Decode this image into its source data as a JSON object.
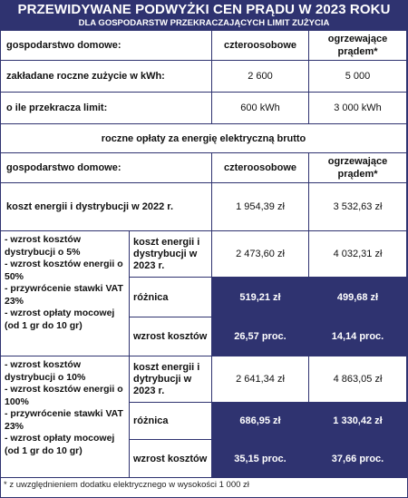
{
  "header": {
    "title": "PRZEWIDYWANE PODWYŻKI CEN PRĄDU W 2023 ROKU",
    "subtitle": "DLA GOSPODARSTW PRZEKRACZAJĄCYCH LIMIT ZUŻYCIA"
  },
  "table1": {
    "col_label": "gospodarstwo domowe:",
    "col_a": "czteroosobowe",
    "col_b": "ogrzewające prądem*",
    "rows": [
      {
        "label": "zakładane roczne zużycie w kWh:",
        "a": "2 600",
        "b": "5 000"
      },
      {
        "label": "o ile przekracza limit:",
        "a": "600 kWh",
        "b": "3 000 kWh"
      }
    ]
  },
  "section_title": "roczne opłaty za energię elektryczną brutto",
  "table2": {
    "col_label": "gospodarstwo domowe:",
    "col_a": "czteroosobowe",
    "col_b": "ogrzewające prądem*",
    "base": {
      "label": "koszt energii i dystrybucji w 2022 r.",
      "a": "1 954,39 zł",
      "b": "3 532,63 zł"
    },
    "scenario1": {
      "description": "- wzrost kosztów dystrybucji o 5%\n- wzrost kosztów energii o 50%\n- przywrócenie stawki VAT 23%\n- wzrost opłaty mocowej (od 1 gr do 10 gr)",
      "cost": {
        "label": "koszt energii i dystrybucji w 2023 r.",
        "a": "2 473,60 zł",
        "b": "4 032,31 zł"
      },
      "diff": {
        "label": "różnica",
        "a": "519,21 zł",
        "b": "499,68 zł"
      },
      "increase": {
        "label": "wzrost kosztów",
        "a": "26,57 proc.",
        "b": "14,14 proc."
      }
    },
    "scenario2": {
      "description": "- wzrost kosztów dystrybucji o 10%\n- wzrost kosztów energii o 100%\n- przywrócenie stawki VAT 23%\n- wzrost opłaty mocowej (od 1 gr do 10 gr)",
      "cost": {
        "label": "koszt energii i dytrybucji w 2023 r.",
        "a": "2 641,34 zł",
        "b": "4 863,05 zł"
      },
      "diff": {
        "label": "różnica",
        "a": "686,95 zł",
        "b": "1 330,42 zł"
      },
      "increase": {
        "label": "wzrost kosztów",
        "a": "35,15 proc.",
        "b": "37,66 proc."
      }
    }
  },
  "footnote": "* z uwzględnieniem dodatku elektrycznego w wysokości 1 000 zł",
  "colors": {
    "navy": "#2f3370",
    "border": "#2f3370",
    "text": "#111111"
  }
}
